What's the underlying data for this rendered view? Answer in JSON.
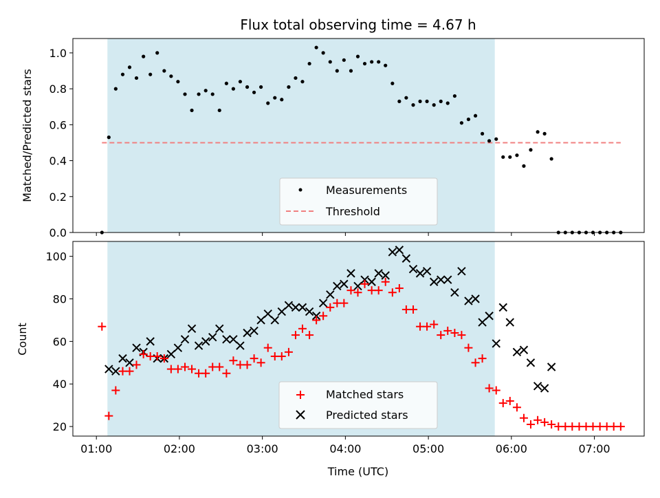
{
  "chart_data": [
    {
      "type": "scatter",
      "title": "Flux total observing time = 4.67 h",
      "xlabel": "",
      "ylabel": "Matched/Predicted stars",
      "xlim": [
        0.7167,
        7.6
      ],
      "ylim": [
        0,
        1.08
      ],
      "yticks": [
        0.0,
        0.2,
        0.4,
        0.6,
        0.8,
        1.0
      ],
      "ytick_labels": [
        "0.0",
        "0.2",
        "0.4",
        "0.6",
        "0.8",
        "1.0"
      ],
      "shaded_x_range": [
        1.133,
        5.8
      ],
      "shade_color": "#d4eaf1",
      "legend_position": "lower-center",
      "series": [
        {
          "name": "Measurements",
          "marker": "dot",
          "color": "#000000",
          "x": [
            1.067,
            1.15,
            1.233,
            1.317,
            1.4,
            1.483,
            1.567,
            1.65,
            1.733,
            1.817,
            1.9,
            1.983,
            2.067,
            2.15,
            2.233,
            2.317,
            2.4,
            2.483,
            2.567,
            2.65,
            2.733,
            2.817,
            2.9,
            2.983,
            3.067,
            3.15,
            3.233,
            3.317,
            3.4,
            3.483,
            3.567,
            3.65,
            3.733,
            3.817,
            3.9,
            3.983,
            4.067,
            4.15,
            4.233,
            4.317,
            4.4,
            4.483,
            4.567,
            4.65,
            4.733,
            4.817,
            4.9,
            4.983,
            5.067,
            5.15,
            5.233,
            5.317,
            5.4,
            5.483,
            5.567,
            5.65,
            5.733,
            5.817,
            5.9,
            5.983,
            6.067,
            6.15,
            6.233,
            6.317,
            6.4,
            6.483,
            6.567,
            6.65,
            6.733,
            6.817,
            6.9,
            6.983,
            7.067,
            7.15,
            7.233,
            7.317
          ],
          "y": [
            0.0,
            0.53,
            0.8,
            0.88,
            0.92,
            0.86,
            0.98,
            0.88,
            1.0,
            0.9,
            0.87,
            0.84,
            0.77,
            0.68,
            0.77,
            0.79,
            0.77,
            0.68,
            0.83,
            0.8,
            0.84,
            0.81,
            0.78,
            0.81,
            0.72,
            0.75,
            0.74,
            0.81,
            0.86,
            0.84,
            0.94,
            1.03,
            1.0,
            0.95,
            0.9,
            0.96,
            0.9,
            0.98,
            0.94,
            0.95,
            0.95,
            0.93,
            0.83,
            0.73,
            0.75,
            0.71,
            0.73,
            0.73,
            0.71,
            0.73,
            0.72,
            0.76,
            0.61,
            0.63,
            0.65,
            0.55,
            0.51,
            0.52,
            0.42,
            0.42,
            0.43,
            0.37,
            0.46,
            0.56,
            0.55,
            0.41,
            0.0,
            0.0,
            0.0,
            0.0,
            0.0,
            0.0,
            0.0,
            0.0,
            0.0,
            0.0
          ]
        },
        {
          "name": "Threshold",
          "marker": "dashed-line",
          "color": "#f08080",
          "x": [
            1.067,
            7.317
          ],
          "y": [
            0.5,
            0.5
          ]
        }
      ]
    },
    {
      "type": "scatter",
      "title": "",
      "xlabel": "Time (UTC)",
      "ylabel": "Count",
      "xlim": [
        0.7167,
        7.6
      ],
      "ylim": [
        15.5,
        107
      ],
      "yticks": [
        20,
        40,
        60,
        80,
        100
      ],
      "ytick_labels": [
        "20",
        "40",
        "60",
        "80",
        "100"
      ],
      "xticks": [
        1,
        2,
        3,
        4,
        5,
        6,
        7
      ],
      "xtick_labels": [
        "01:00",
        "02:00",
        "03:00",
        "04:00",
        "05:00",
        "06:00",
        "07:00"
      ],
      "shaded_x_range": [
        1.133,
        5.8
      ],
      "shade_color": "#d4eaf1",
      "legend_position": "lower-center",
      "series": [
        {
          "name": "Matched stars",
          "marker": "plus",
          "color": "#ff0000",
          "x": [
            1.067,
            1.15,
            1.233,
            1.317,
            1.4,
            1.483,
            1.567,
            1.65,
            1.733,
            1.817,
            1.9,
            1.983,
            2.067,
            2.15,
            2.233,
            2.317,
            2.4,
            2.483,
            2.567,
            2.65,
            2.733,
            2.817,
            2.9,
            2.983,
            3.067,
            3.15,
            3.233,
            3.317,
            3.4,
            3.483,
            3.567,
            3.65,
            3.733,
            3.817,
            3.9,
            3.983,
            4.067,
            4.15,
            4.233,
            4.317,
            4.4,
            4.483,
            4.567,
            4.65,
            4.733,
            4.817,
            4.9,
            4.983,
            5.067,
            5.15,
            5.233,
            5.317,
            5.4,
            5.483,
            5.567,
            5.65,
            5.733,
            5.817,
            5.9,
            5.983,
            6.067,
            6.15,
            6.233,
            6.317,
            6.4,
            6.483,
            6.567,
            6.65,
            6.733,
            6.817,
            6.9,
            6.983,
            7.067,
            7.15,
            7.233,
            7.317
          ],
          "y": [
            67,
            25,
            37,
            46,
            46,
            49,
            54,
            53,
            53,
            52,
            47,
            47,
            48,
            47,
            45,
            45,
            48,
            48,
            45,
            51,
            49,
            49,
            52,
            50,
            57,
            53,
            53,
            55,
            63,
            66,
            63,
            70,
            72,
            76,
            78,
            78,
            84,
            83,
            87,
            84,
            84,
            88,
            83,
            85,
            75,
            75,
            67,
            67,
            68,
            63,
            65,
            64,
            63,
            57,
            50,
            52,
            38,
            37,
            31,
            32,
            29,
            24,
            21,
            23,
            22,
            21,
            20,
            20,
            20,
            20,
            20,
            20,
            20,
            20,
            20,
            20
          ]
        },
        {
          "name": "Predicted stars",
          "marker": "cross",
          "color": "#000000",
          "x": [
            1.15,
            1.233,
            1.317,
            1.4,
            1.483,
            1.567,
            1.65,
            1.733,
            1.817,
            1.9,
            1.983,
            2.067,
            2.15,
            2.233,
            2.317,
            2.4,
            2.483,
            2.567,
            2.65,
            2.733,
            2.817,
            2.9,
            2.983,
            3.067,
            3.15,
            3.233,
            3.317,
            3.4,
            3.483,
            3.567,
            3.65,
            3.733,
            3.817,
            3.9,
            3.983,
            4.067,
            4.15,
            4.233,
            4.317,
            4.4,
            4.483,
            4.567,
            4.65,
            4.733,
            4.817,
            4.9,
            4.983,
            5.067,
            5.15,
            5.233,
            5.317,
            5.4,
            5.483,
            5.567,
            5.65,
            5.733,
            5.817,
            5.9,
            5.983,
            6.067,
            6.15,
            6.233,
            6.317,
            6.4,
            6.483
          ],
          "y": [
            47,
            46,
            52,
            50,
            57,
            55,
            60,
            52,
            52,
            54,
            57,
            61,
            66,
            58,
            60,
            62,
            66,
            61,
            61,
            58,
            64,
            65,
            70,
            73,
            70,
            74,
            77,
            76,
            76,
            74,
            72,
            78,
            82,
            86,
            87,
            92,
            86,
            89,
            88,
            92,
            91,
            102,
            103,
            99,
            94,
            92,
            93,
            88,
            89,
            89,
            83,
            93,
            79,
            80,
            69,
            72,
            59,
            76,
            69,
            55,
            56,
            50,
            39,
            38,
            48
          ]
        }
      ]
    }
  ]
}
